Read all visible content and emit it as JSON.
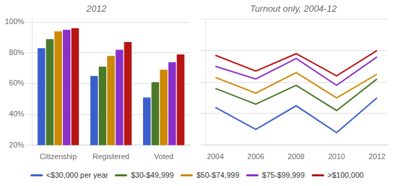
{
  "chart_data": [
    {
      "type": "bar",
      "title": "2012",
      "categories": [
        "Citizenship",
        "Registered",
        "Voted"
      ],
      "series": [
        {
          "name": "<$30,000 per year",
          "color": "#3a5fcd",
          "values": [
            0.83,
            0.65,
            0.51
          ]
        },
        {
          "name": "$30-$49,999",
          "color": "#4a7a28",
          "values": [
            0.89,
            0.71,
            0.61
          ]
        },
        {
          "name": "$50-$74,999",
          "color": "#cc8800",
          "values": [
            0.94,
            0.78,
            0.69
          ]
        },
        {
          "name": "$75-$99,999",
          "color": "#8b2fc9",
          "values": [
            0.95,
            0.82,
            0.74
          ]
        },
        {
          "name": ">$100,000",
          "color": "#b81414",
          "values": [
            0.96,
            0.87,
            0.79
          ]
        }
      ],
      "ylim": [
        0.2,
        1.02
      ],
      "yticks": [
        {
          "value": 0.2,
          "label": "20%"
        },
        {
          "value": 0.4,
          "label": "40%"
        },
        {
          "value": 0.6,
          "label": "60%"
        },
        {
          "value": 0.8,
          "label": "80%"
        },
        {
          "value": 1.0,
          "label": "100%"
        }
      ],
      "grid": true
    },
    {
      "type": "line",
      "title": "Turnout only, 2004-12",
      "x": [
        2004,
        2006,
        2008,
        2010,
        2012
      ],
      "series": [
        {
          "name": "<$30,000 per year",
          "color": "#3a5fcd",
          "values": [
            0.44,
            0.3,
            0.45,
            0.28,
            0.5
          ]
        },
        {
          "name": "$30-$49,999",
          "color": "#4a7a28",
          "values": [
            0.56,
            0.46,
            0.58,
            0.42,
            0.62
          ]
        },
        {
          "name": "$50-$74,999",
          "color": "#cc8800",
          "values": [
            0.63,
            0.53,
            0.66,
            0.5,
            0.65
          ]
        },
        {
          "name": "$75-$99,999",
          "color": "#8b2fc9",
          "values": [
            0.7,
            0.62,
            0.75,
            0.58,
            0.76
          ]
        },
        {
          "name": ">$100,000",
          "color": "#b81414",
          "values": [
            0.77,
            0.67,
            0.78,
            0.64,
            0.8
          ]
        }
      ],
      "xlim": [
        2003.5,
        2012.5
      ],
      "xticks": [
        2004,
        2006,
        2008,
        2010,
        2012
      ],
      "ylim": [
        0.2,
        1.0
      ],
      "yticks": [
        0.2,
        0.4,
        0.6,
        0.8,
        1.0
      ],
      "grid": true,
      "tick_labels": "x",
      "legend": "bottom"
    }
  ]
}
